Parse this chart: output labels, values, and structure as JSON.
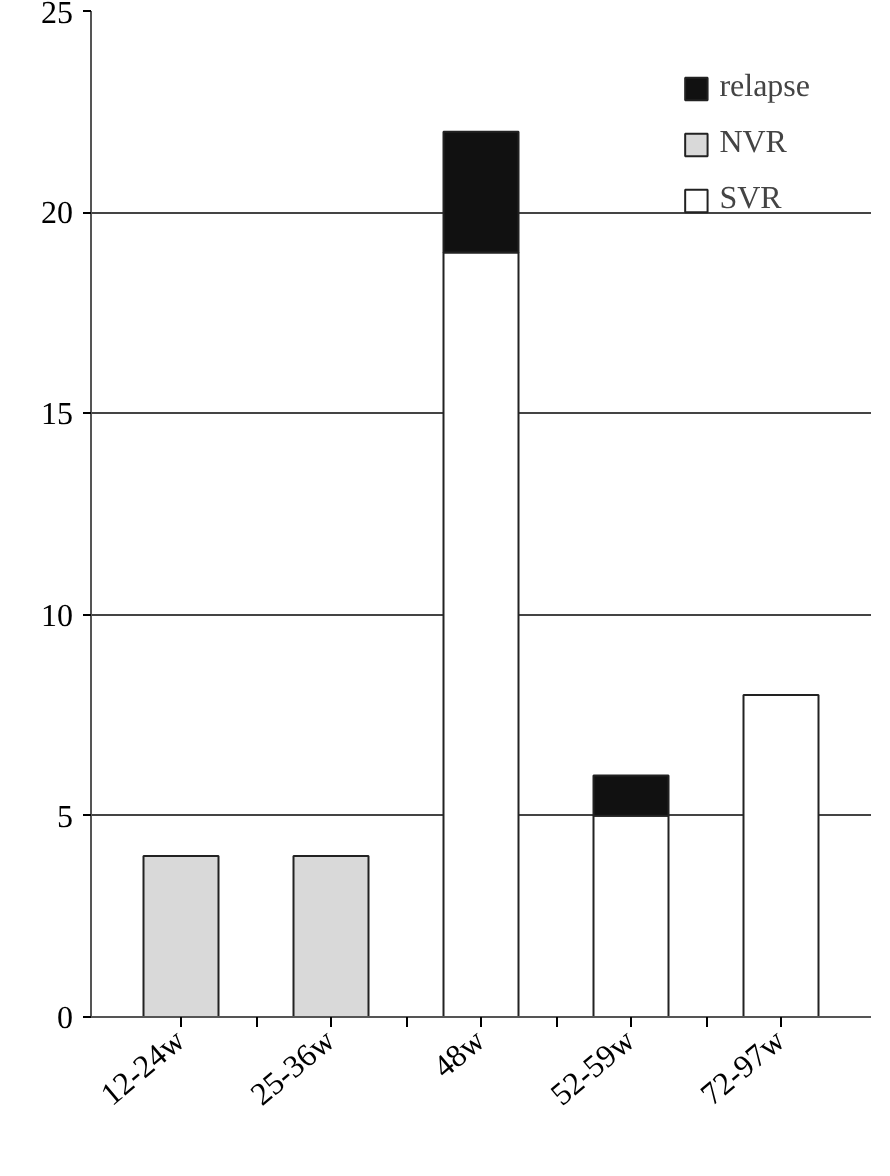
{
  "chart_data": {
    "type": "bar",
    "stacked": true,
    "categories": [
      "12-24w",
      "25-36w",
      "48w",
      "52-59w",
      "72-97w"
    ],
    "series": [
      {
        "name": "SVR",
        "color": "#ffffff",
        "values": [
          null,
          null,
          19,
          5,
          8
        ]
      },
      {
        "name": "NVR",
        "color": "#d9d9d9",
        "values": [
          4,
          4,
          null,
          null,
          null
        ]
      },
      {
        "name": "relapse",
        "color": "#111111",
        "values": [
          null,
          null,
          3,
          1,
          null
        ]
      }
    ],
    "ylim": [
      0,
      25
    ],
    "yticks": [
      0,
      5,
      10,
      15,
      20,
      25
    ],
    "grid": "y",
    "legend": "top right"
  }
}
